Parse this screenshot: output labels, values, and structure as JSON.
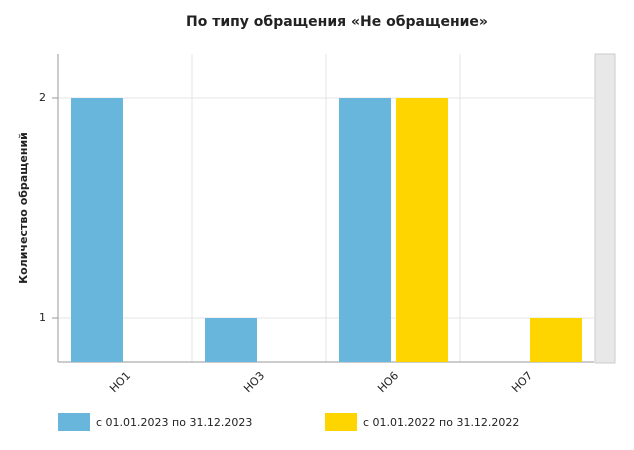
{
  "chart_data": {
    "type": "bar",
    "title": "По типу обращения «Не обращение»",
    "y_label": "Количество обращений",
    "categories": [
      "НО1",
      "НО3",
      "НО6",
      "НО7"
    ],
    "series": [
      {
        "name": "с 01.01.2023 по 31.12.2023",
        "color": "#69b6dd",
        "values": [
          2,
          1,
          2,
          null
        ]
      },
      {
        "name": "с 01.01.2022 по 31.12.2022",
        "color": "#ffd500",
        "values": [
          null,
          null,
          2,
          1
        ]
      }
    ],
    "ylim": [
      0.8,
      2.2
    ],
    "yticks": [
      1,
      2
    ],
    "grid": true
  }
}
